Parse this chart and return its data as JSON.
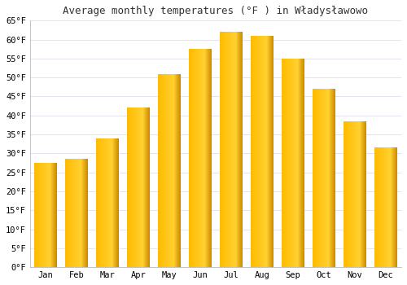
{
  "title": "Average monthly temperatures (°F ) in Władysławowo",
  "months": [
    "Jan",
    "Feb",
    "Mar",
    "Apr",
    "May",
    "Jun",
    "Jul",
    "Aug",
    "Sep",
    "Oct",
    "Nov",
    "Dec"
  ],
  "values": [
    27.5,
    28.5,
    34,
    42,
    51,
    57.5,
    62,
    61,
    55,
    47,
    38.5,
    31.5
  ],
  "ylim": [
    0,
    65
  ],
  "yticks": [
    0,
    5,
    10,
    15,
    20,
    25,
    30,
    35,
    40,
    45,
    50,
    55,
    60,
    65
  ],
  "bar_color_left": "#FFBB00",
  "bar_color_center": "#FFD050",
  "bar_color_right": "#E08800",
  "background_color": "#FFFFFF",
  "plot_bg_color": "#FFFFFF",
  "grid_color": "#DDDDEE",
  "title_fontsize": 9,
  "tick_fontsize": 7.5,
  "figsize": [
    5.0,
    3.5
  ],
  "dpi": 100,
  "bar_width": 0.72
}
